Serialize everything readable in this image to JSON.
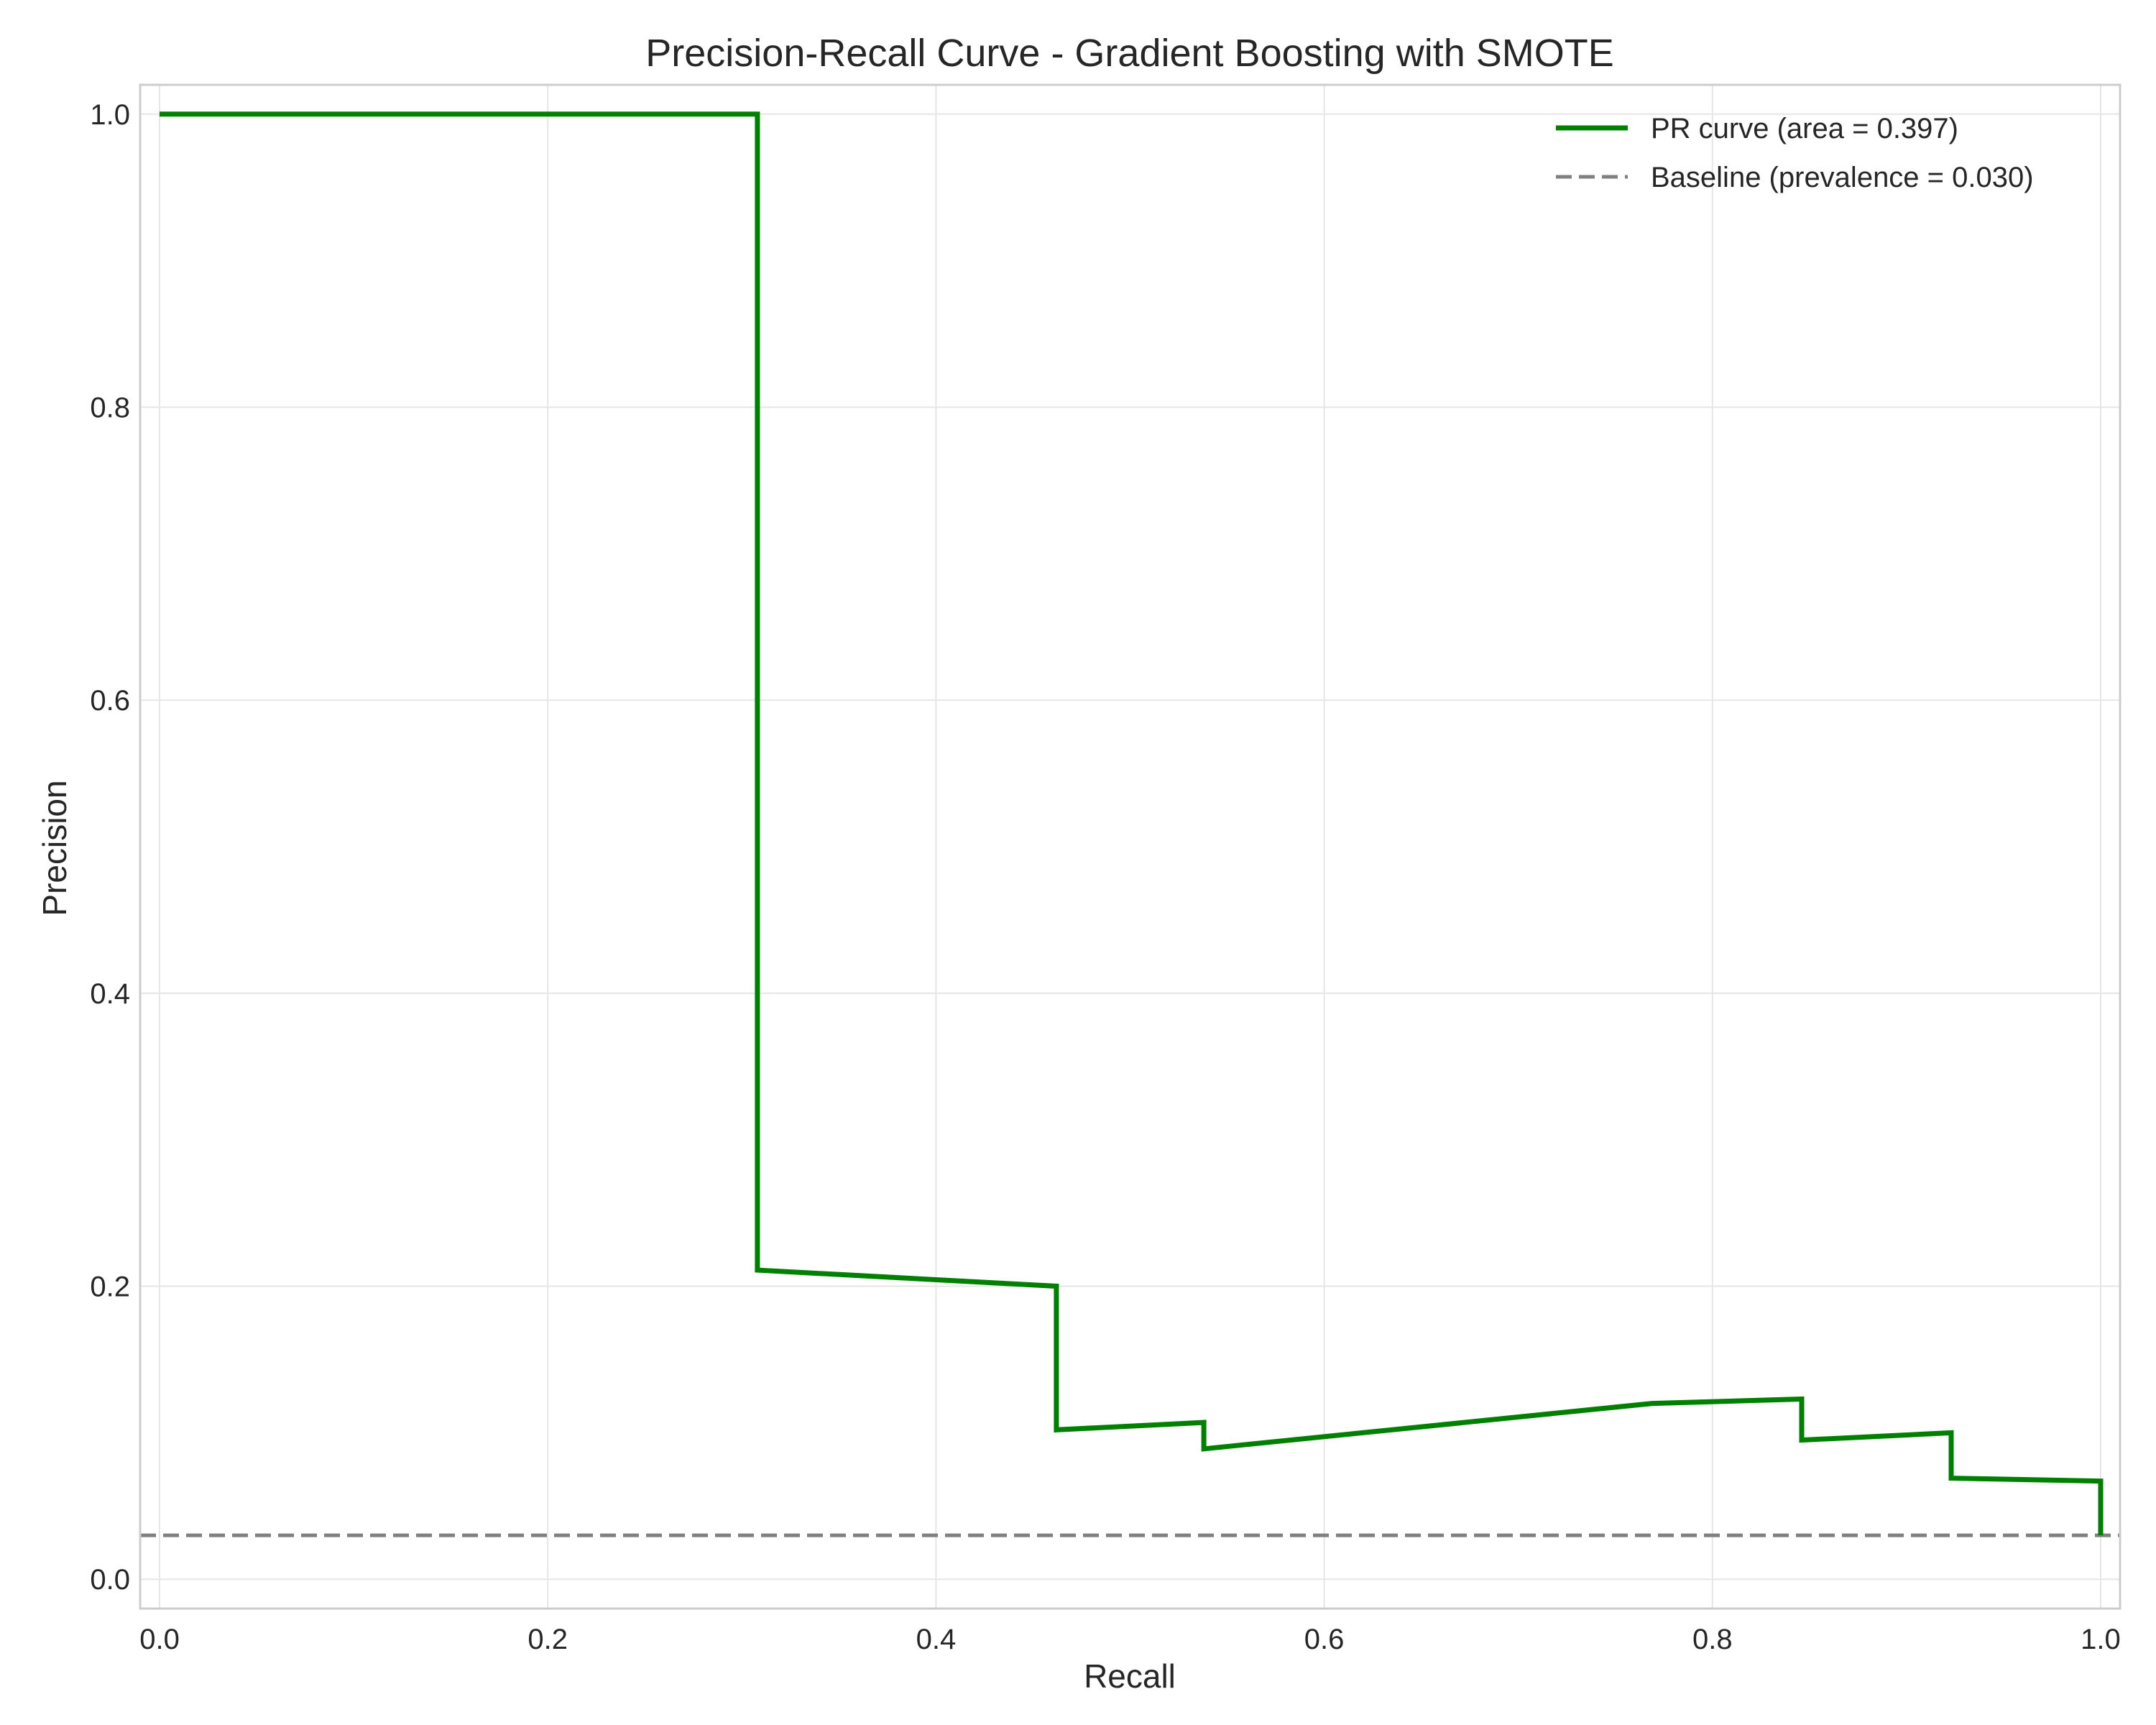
{
  "chart_data": {
    "type": "line",
    "title": "Precision-Recall Curve - Gradient Boosting with SMOTE",
    "xlabel": "Recall",
    "ylabel": "Precision",
    "xlim": [
      -0.01,
      1.01
    ],
    "ylim": [
      -0.02,
      1.02
    ],
    "xticks": [
      "0.0",
      "0.2",
      "0.4",
      "0.6",
      "0.8",
      "1.0"
    ],
    "yticks": [
      "0.0",
      "0.2",
      "0.4",
      "0.6",
      "0.8",
      "1.0"
    ],
    "grid": true,
    "legend_position": "top-right",
    "series": [
      {
        "name": "PR curve (area = 0.397)",
        "color": "#008000",
        "style": "solid",
        "x": [
          0.0,
          0.308,
          0.308,
          0.462,
          0.462,
          0.538,
          0.538,
          0.769,
          0.846,
          0.846,
          0.923,
          0.923,
          1.0,
          1.0
        ],
        "y": [
          1.0,
          1.0,
          0.211,
          0.2,
          0.102,
          0.107,
          0.089,
          0.12,
          0.123,
          0.095,
          0.1,
          0.069,
          0.067,
          0.03
        ]
      },
      {
        "name": "Baseline (prevalence = 0.030)",
        "color": "#808080",
        "style": "dashed",
        "x": [
          -0.01,
          1.01
        ],
        "y": [
          0.03,
          0.03
        ]
      }
    ]
  }
}
